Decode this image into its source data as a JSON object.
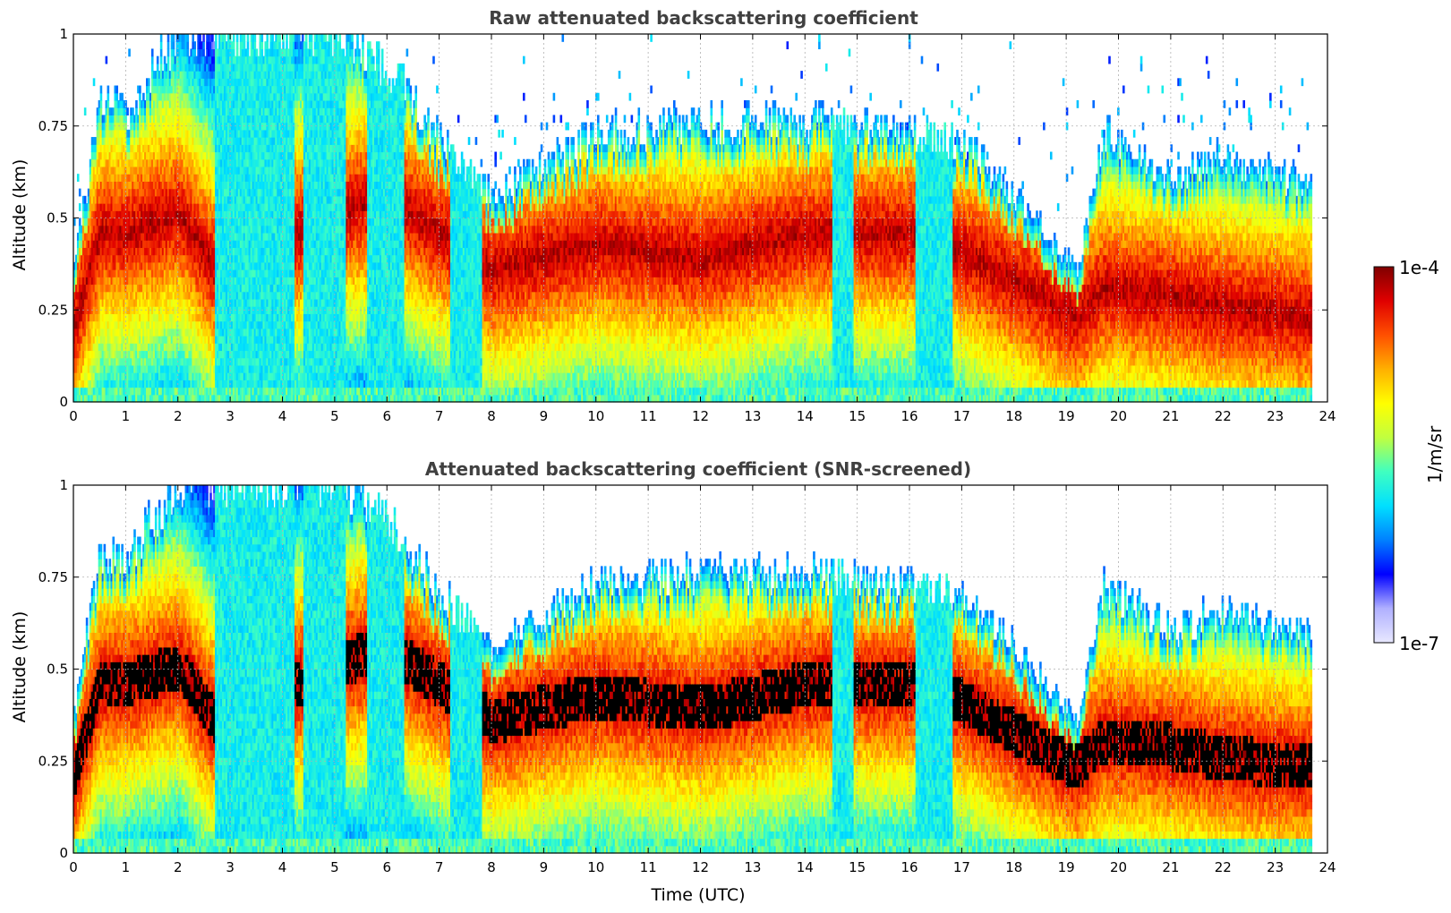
{
  "chart_data": [
    {
      "type": "heatmap",
      "title": "Raw attenuated backscattering coefficient",
      "xlabel": "",
      "ylabel": "Altitude (km)",
      "xlim": [
        0,
        24
      ],
      "ylim": [
        0,
        1
      ],
      "xticks": [
        "0",
        "1",
        "2",
        "3",
        "4",
        "5",
        "6",
        "7",
        "8",
        "9",
        "10",
        "11",
        "12",
        "13",
        "14",
        "15",
        "16",
        "17",
        "18",
        "19",
        "20",
        "21",
        "22",
        "23",
        "24"
      ],
      "yticks": [
        "0",
        "0.25",
        "0.5",
        "0.75",
        "1"
      ],
      "grid": true,
      "data_end_hour": 23.7,
      "black_core": false,
      "colormap": "jet (log scale)",
      "boundary_layer": [
        {
          "t": 0,
          "top_km": 0.38,
          "bl_km": 0.2
        },
        {
          "t": 0.5,
          "top_km": 0.8,
          "bl_km": 0.45
        },
        {
          "t": 1,
          "top_km": 0.78,
          "bl_km": 0.45
        },
        {
          "t": 2,
          "top_km": 1.0,
          "bl_km": 0.5
        },
        {
          "t": 2.7,
          "top_km": 1.0,
          "bl_km": 0.35
        },
        {
          "t": 3.5,
          "top_km": 1.0,
          "bl_km": 0.4
        },
        {
          "t": 5,
          "top_km": 1.0,
          "bl_km": 0.5
        },
        {
          "t": 6,
          "top_km": 0.9,
          "bl_km": 0.55
        },
        {
          "t": 7,
          "top_km": 0.7,
          "bl_km": 0.45
        },
        {
          "t": 8,
          "top_km": 0.55,
          "bl_km": 0.35
        },
        {
          "t": 10,
          "top_km": 0.72,
          "bl_km": 0.42
        },
        {
          "t": 12,
          "top_km": 0.75,
          "bl_km": 0.38
        },
        {
          "t": 14,
          "top_km": 0.75,
          "bl_km": 0.45
        },
        {
          "t": 16,
          "top_km": 0.72,
          "bl_km": 0.45
        },
        {
          "t": 17,
          "top_km": 0.7,
          "bl_km": 0.4
        },
        {
          "t": 18,
          "top_km": 0.55,
          "bl_km": 0.32
        },
        {
          "t": 19.2,
          "top_km": 0.35,
          "bl_km": 0.22
        },
        {
          "t": 19.7,
          "top_km": 0.72,
          "bl_km": 0.3
        },
        {
          "t": 21,
          "top_km": 0.6,
          "bl_km": 0.28
        },
        {
          "t": 22,
          "top_km": 0.65,
          "bl_km": 0.25
        },
        {
          "t": 23.7,
          "top_km": 0.58,
          "bl_km": 0.22
        }
      ],
      "low_signal_segments_hours": [
        [
          2.7,
          4.2
        ],
        [
          4.4,
          5.2
        ],
        [
          5.6,
          6.3
        ],
        [
          7.2,
          7.8
        ],
        [
          14.5,
          14.9
        ],
        [
          16.1,
          16.8
        ]
      ]
    },
    {
      "type": "heatmap",
      "title": "Attenuated backscattering coefficient (SNR-screened)",
      "xlabel": "Time (UTC)",
      "ylabel": "Altitude (km)",
      "xlim": [
        0,
        24
      ],
      "ylim": [
        0,
        1
      ],
      "xticks": [
        "0",
        "1",
        "2",
        "3",
        "4",
        "5",
        "6",
        "7",
        "8",
        "9",
        "10",
        "11",
        "12",
        "13",
        "14",
        "15",
        "16",
        "17",
        "18",
        "19",
        "20",
        "21",
        "22",
        "23",
        "24"
      ],
      "yticks": [
        "0",
        "0.25",
        "0.5",
        "0.75",
        "1"
      ],
      "grid": true,
      "data_end_hour": 23.7,
      "black_core": true,
      "colormap": "jet (log scale)",
      "boundary_layer": [
        {
          "t": 0,
          "top_km": 0.38,
          "bl_km": 0.2
        },
        {
          "t": 0.5,
          "top_km": 0.8,
          "bl_km": 0.45
        },
        {
          "t": 1,
          "top_km": 0.78,
          "bl_km": 0.45
        },
        {
          "t": 2,
          "top_km": 1.0,
          "bl_km": 0.5
        },
        {
          "t": 2.7,
          "top_km": 1.0,
          "bl_km": 0.35
        },
        {
          "t": 3.5,
          "top_km": 1.0,
          "bl_km": 0.4
        },
        {
          "t": 5,
          "top_km": 1.0,
          "bl_km": 0.5
        },
        {
          "t": 6,
          "top_km": 0.9,
          "bl_km": 0.55
        },
        {
          "t": 7,
          "top_km": 0.7,
          "bl_km": 0.45
        },
        {
          "t": 8,
          "top_km": 0.55,
          "bl_km": 0.35
        },
        {
          "t": 10,
          "top_km": 0.72,
          "bl_km": 0.42
        },
        {
          "t": 12,
          "top_km": 0.75,
          "bl_km": 0.38
        },
        {
          "t": 14,
          "top_km": 0.75,
          "bl_km": 0.45
        },
        {
          "t": 16,
          "top_km": 0.72,
          "bl_km": 0.45
        },
        {
          "t": 17,
          "top_km": 0.7,
          "bl_km": 0.4
        },
        {
          "t": 18,
          "top_km": 0.55,
          "bl_km": 0.32
        },
        {
          "t": 19.2,
          "top_km": 0.35,
          "bl_km": 0.22
        },
        {
          "t": 19.7,
          "top_km": 0.72,
          "bl_km": 0.3
        },
        {
          "t": 21,
          "top_km": 0.6,
          "bl_km": 0.28
        },
        {
          "t": 22,
          "top_km": 0.65,
          "bl_km": 0.25
        },
        {
          "t": 23.7,
          "top_km": 0.58,
          "bl_km": 0.22
        }
      ],
      "low_signal_segments_hours": [
        [
          2.7,
          4.2
        ],
        [
          4.4,
          5.2
        ],
        [
          5.6,
          6.3
        ],
        [
          7.2,
          7.8
        ],
        [
          14.5,
          14.9
        ],
        [
          16.1,
          16.8
        ]
      ]
    }
  ],
  "colorbar": {
    "label": "1/m/sr",
    "max_label": "1e-4",
    "min_label": "1e-7",
    "scale": "log",
    "range": [
      1e-07,
      0.0001
    ],
    "colors": [
      "#e8e8ff",
      "#b0b0ff",
      "#0000ff",
      "#0080ff",
      "#00e0ff",
      "#40ffc0",
      "#c0ff40",
      "#ffff00",
      "#ffb000",
      "#ff5000",
      "#e00000",
      "#800000"
    ]
  }
}
